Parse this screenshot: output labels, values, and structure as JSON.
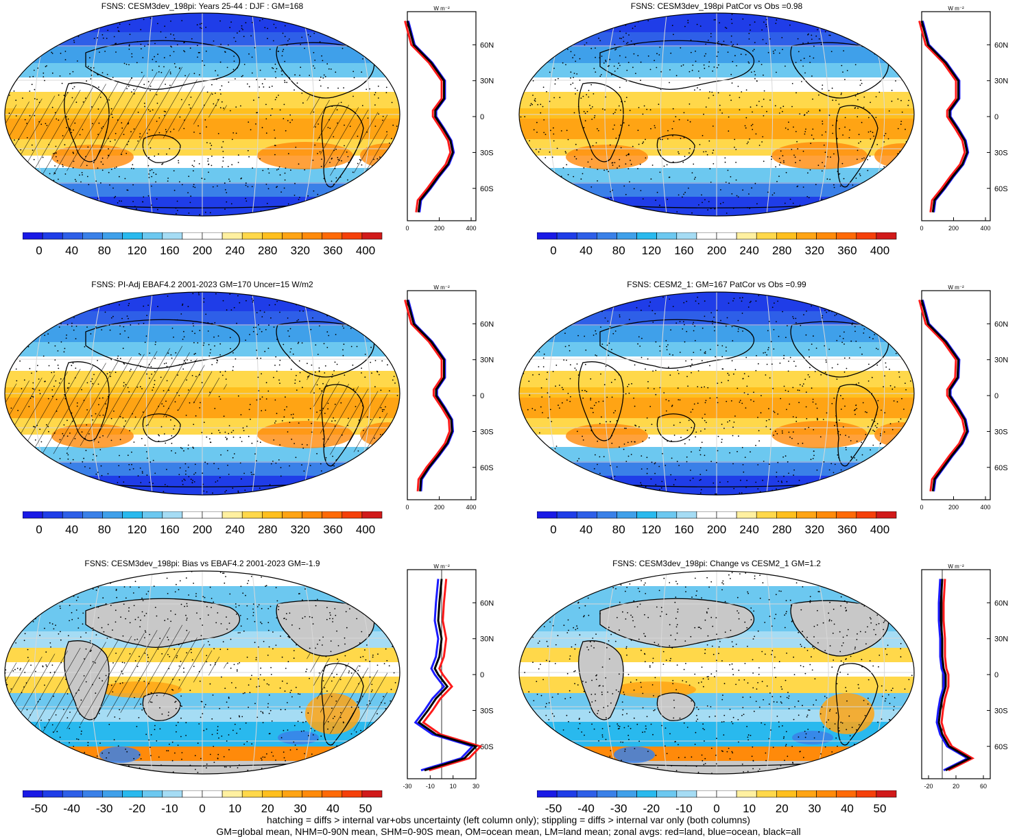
{
  "panels": [
    {
      "title": "FSNS: CESM3dev_198pi: Years 25-44 : DJF : GM=168",
      "hatched": true,
      "cbar_labels": [
        "0",
        "40",
        "80",
        "120",
        "160",
        "200",
        "240",
        "280",
        "320",
        "360",
        "400"
      ],
      "zonal_xticks": [
        "0",
        "200",
        "400"
      ],
      "zonal_unit": "W m⁻²",
      "lat_labels": [
        "60N",
        "30N",
        "0",
        "30S",
        "60S"
      ],
      "kind": "abs"
    },
    {
      "title": "FSNS: CESM3dev_198pi PatCor vs Obs =0.98",
      "hatched": false,
      "cbar_labels": [
        "0",
        "40",
        "80",
        "120",
        "160",
        "200",
        "240",
        "280",
        "320",
        "360",
        "400"
      ],
      "zonal_xticks": [
        "0",
        "200",
        "400"
      ],
      "zonal_unit": "W m⁻²",
      "lat_labels": [
        "60N",
        "30N",
        "0",
        "30S",
        "60S"
      ],
      "kind": "abs"
    },
    {
      "title": "FSNS: PI-Adj EBAF4.2 2001-2023 GM=170 Uncer=15 W/m2",
      "hatched": true,
      "cbar_labels": [
        "0",
        "40",
        "80",
        "120",
        "160",
        "200",
        "240",
        "280",
        "320",
        "360",
        "400"
      ],
      "zonal_xticks": [
        "0",
        "200",
        "400"
      ],
      "zonal_unit": "W m⁻²",
      "lat_labels": [
        "60N",
        "30N",
        "0",
        "30S",
        "60S"
      ],
      "kind": "abs"
    },
    {
      "title": "FSNS: CESM2_1: GM=167 PatCor vs Obs =0.99",
      "hatched": false,
      "cbar_labels": [
        "0",
        "40",
        "80",
        "120",
        "160",
        "200",
        "240",
        "280",
        "320",
        "360",
        "400"
      ],
      "zonal_xticks": [
        "0",
        "200",
        "400"
      ],
      "zonal_unit": "W m⁻²",
      "lat_labels": [
        "60N",
        "30N",
        "0",
        "30S",
        "60S"
      ],
      "kind": "abs"
    },
    {
      "title": "FSNS: CESM3dev_198pi: Bias vs EBAF4.2 2001-2023 GM=-1.9",
      "hatched": true,
      "cbar_labels": [
        "-50",
        "-40",
        "-30",
        "-20",
        "-10",
        "0",
        "10",
        "20",
        "30",
        "40",
        "50"
      ],
      "zonal_xticks": [
        "-30",
        "-10",
        "10",
        "30"
      ],
      "zonal_unit": "W m⁻²",
      "lat_labels": [
        "60N",
        "30N",
        "0",
        "30S",
        "60S"
      ],
      "kind": "diff"
    },
    {
      "title": "FSNS: CESM3dev_198pi: Change vs CESM2_1 GM=1.2",
      "hatched": false,
      "cbar_labels": [
        "-50",
        "-40",
        "-30",
        "-20",
        "-10",
        "0",
        "10",
        "20",
        "30",
        "40",
        "50"
      ],
      "zonal_xticks": [
        "-20",
        "20",
        "60"
      ],
      "zonal_unit": "W m⁻²",
      "lat_labels": [
        "60N",
        "30N",
        "0",
        "30S",
        "60S"
      ],
      "kind": "diff"
    }
  ],
  "colors": {
    "scale": [
      "#1a1ae6",
      "#1f3de8",
      "#2e5fe8",
      "#3a80e8",
      "#3fa0ea",
      "#29b9ee",
      "#6cc8f0",
      "#a5dcf4",
      "#ffffff",
      "#ffffff",
      "#fff0a0",
      "#ffd84a",
      "#ffbf1e",
      "#ffa414",
      "#ff8a0a",
      "#ff6a06",
      "#f5400a",
      "#d11a1a"
    ],
    "land_gray": "#c8c8c8",
    "zonal_land": "#ff1a1a",
    "zonal_ocean": "#1a1aff",
    "zonal_all": "#000000"
  },
  "chart_data": [
    {
      "type": "heatmap",
      "title": "FSNS: CESM3dev_198pi: Years 25-44 : DJF : GM=168",
      "colorbar": [
        0,
        40,
        80,
        120,
        160,
        200,
        240,
        280,
        320,
        360,
        400
      ],
      "zonal_lat": [
        80,
        60,
        45,
        30,
        15,
        5,
        0,
        -10,
        -20,
        -30,
        -40,
        -50,
        -60,
        -70,
        -80
      ],
      "zonal_all": [
        0,
        40,
        150,
        230,
        230,
        175,
        175,
        225,
        270,
        285,
        255,
        195,
        140,
        80,
        70
      ]
    },
    {
      "type": "heatmap",
      "title": "FSNS: CESM3dev_198pi PatCor vs Obs =0.98",
      "colorbar": [
        0,
        40,
        80,
        120,
        160,
        200,
        240,
        280,
        320,
        360,
        400
      ],
      "zonal_lat": [
        80,
        60,
        45,
        30,
        15,
        5,
        0,
        -10,
        -20,
        -30,
        -40,
        -50,
        -60,
        -70,
        -80
      ],
      "zonal_all": [
        0,
        40,
        150,
        230,
        230,
        175,
        175,
        225,
        270,
        285,
        255,
        195,
        140,
        80,
        70
      ]
    },
    {
      "type": "heatmap",
      "title": "FSNS: PI-Adj EBAF4.2 2001-2023 GM=170 Uncer=15 W/m2",
      "colorbar": [
        0,
        40,
        80,
        120,
        160,
        200,
        240,
        280,
        320,
        360,
        400
      ],
      "zonal_lat": [
        80,
        60,
        45,
        30,
        15,
        5,
        0,
        -10,
        -20,
        -30,
        -40,
        -50,
        -60,
        -70,
        -80
      ],
      "zonal_all": [
        0,
        40,
        150,
        230,
        230,
        180,
        180,
        230,
        275,
        280,
        250,
        195,
        135,
        85,
        80
      ]
    },
    {
      "type": "heatmap",
      "title": "FSNS: CESM2_1: GM=167 PatCor vs Obs =0.99",
      "colorbar": [
        0,
        40,
        80,
        120,
        160,
        200,
        240,
        280,
        320,
        360,
        400
      ],
      "zonal_lat": [
        80,
        60,
        45,
        30,
        15,
        5,
        0,
        -10,
        -20,
        -30,
        -40,
        -50,
        -60,
        -70,
        -80
      ],
      "zonal_all": [
        0,
        40,
        150,
        230,
        225,
        175,
        175,
        225,
        270,
        285,
        250,
        190,
        135,
        80,
        70
      ]
    },
    {
      "type": "heatmap",
      "title": "FSNS: CESM3dev_198pi: Bias vs EBAF4.2 2001-2023 GM=-1.9",
      "colorbar": [
        -50,
        -40,
        -30,
        -20,
        -10,
        0,
        10,
        20,
        30,
        40,
        50
      ],
      "zonal_lat": [
        80,
        60,
        45,
        30,
        15,
        5,
        0,
        -10,
        -20,
        -30,
        -40,
        -50,
        -60,
        -70,
        -80
      ],
      "zonal_all": [
        0,
        -2,
        -3,
        0,
        -2,
        -6,
        -3,
        5,
        -5,
        -12,
        -20,
        -5,
        30,
        20,
        -15
      ]
    },
    {
      "type": "heatmap",
      "title": "FSNS: CESM3dev_198pi: Change vs CESM2_1 GM=1.2",
      "colorbar": [
        -50,
        -40,
        -30,
        -20,
        -10,
        0,
        10,
        20,
        30,
        40,
        50
      ],
      "zonal_lat": [
        80,
        60,
        45,
        30,
        15,
        5,
        0,
        -10,
        -20,
        -30,
        -40,
        -50,
        -60,
        -70,
        -80
      ],
      "zonal_all": [
        0,
        -2,
        -2,
        0,
        0,
        2,
        5,
        5,
        0,
        -3,
        -5,
        0,
        10,
        40,
        5
      ]
    }
  ],
  "footer": {
    "line1": "hatching = diffs > internal var+obs uncertainty (left column only); stippling = diffs > internal var only (both columns)",
    "line2": "GM=global mean, NHM=0-90N mean, SHM=0-90S mean, OM=ocean mean, LM=land mean; zonal avgs: red=land, blue=ocean, black=all"
  }
}
